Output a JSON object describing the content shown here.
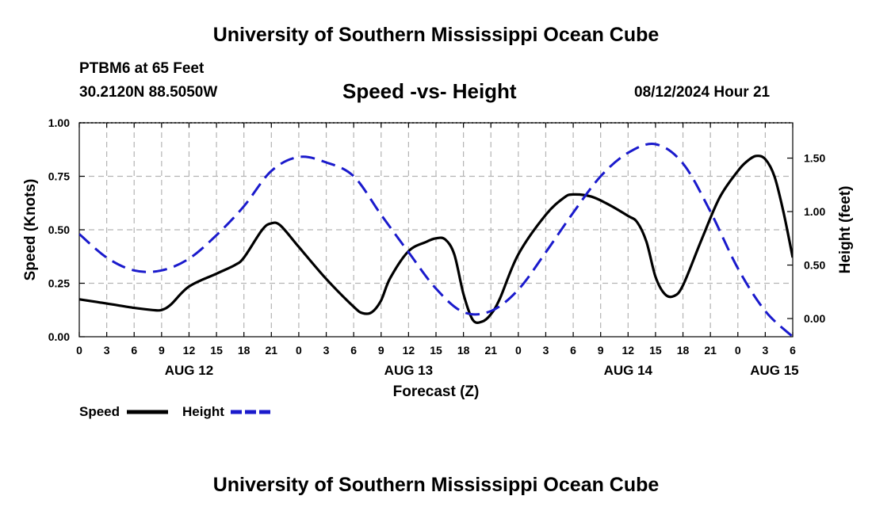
{
  "header": {
    "title_top": "University of Southern Mississippi Ocean Cube",
    "station": "PTBM6 at 65 Feet",
    "coordinates": "30.2120N  88.5050W",
    "subtitle": "Speed -vs- Height",
    "datetime": "08/12/2024 Hour 21"
  },
  "footer": {
    "title_bottom": "University of Southern Mississippi Ocean Cube"
  },
  "chart_data": {
    "type": "line",
    "title": "Speed -vs- Height",
    "xlabel": "Forecast (Z)",
    "ylabel": "Speed (Knots)",
    "ylabel_right": "Height (feet)",
    "x_unit": "hours since AUG 12 00Z",
    "xlim": [
      0,
      78
    ],
    "ylim": [
      0,
      1.0
    ],
    "ylim_right": [
      -0.17,
      1.83
    ],
    "x_ticks": [
      {
        "x": 0,
        "label": "0"
      },
      {
        "x": 3,
        "label": "3"
      },
      {
        "x": 6,
        "label": "6"
      },
      {
        "x": 9,
        "label": "9"
      },
      {
        "x": 12,
        "label": "12"
      },
      {
        "x": 15,
        "label": "15"
      },
      {
        "x": 18,
        "label": "18"
      },
      {
        "x": 21,
        "label": "21"
      },
      {
        "x": 24,
        "label": "0"
      },
      {
        "x": 27,
        "label": "3"
      },
      {
        "x": 30,
        "label": "6"
      },
      {
        "x": 33,
        "label": "9"
      },
      {
        "x": 36,
        "label": "12"
      },
      {
        "x": 39,
        "label": "15"
      },
      {
        "x": 42,
        "label": "18"
      },
      {
        "x": 45,
        "label": "21"
      },
      {
        "x": 48,
        "label": "0"
      },
      {
        "x": 51,
        "label": "3"
      },
      {
        "x": 54,
        "label": "6"
      },
      {
        "x": 57,
        "label": "9"
      },
      {
        "x": 60,
        "label": "12"
      },
      {
        "x": 63,
        "label": "15"
      },
      {
        "x": 66,
        "label": "18"
      },
      {
        "x": 69,
        "label": "21"
      },
      {
        "x": 72,
        "label": "0"
      },
      {
        "x": 75,
        "label": "3"
      },
      {
        "x": 78,
        "label": "6"
      }
    ],
    "date_labels": [
      {
        "x": 12,
        "label": "AUG 12"
      },
      {
        "x": 36,
        "label": "AUG 13"
      },
      {
        "x": 60,
        "label": "AUG 14"
      },
      {
        "x": 76,
        "label": "AUG 15"
      }
    ],
    "y_ticks_left": [
      {
        "v": 0.0,
        "label": "0.00"
      },
      {
        "v": 0.25,
        "label": "0.25"
      },
      {
        "v": 0.5,
        "label": "0.50"
      },
      {
        "v": 0.75,
        "label": "0.75"
      },
      {
        "v": 1.0,
        "label": "1.00"
      }
    ],
    "y_ticks_right": [
      {
        "v": 0.0,
        "label": "0.00"
      },
      {
        "v": 0.5,
        "label": "0.50"
      },
      {
        "v": 1.0,
        "label": "1.00"
      },
      {
        "v": 1.5,
        "label": "1.50"
      }
    ],
    "grid": true,
    "series": [
      {
        "name": "Speed",
        "axis": "left",
        "color": "#000000",
        "dash": "solid",
        "x": [
          0,
          3,
          6,
          8,
          9,
          10,
          12,
          15,
          17,
          18,
          20,
          21,
          22,
          24,
          27,
          30,
          31,
          32,
          33,
          34,
          36,
          38,
          39,
          40,
          41,
          42,
          43,
          44,
          45,
          46,
          48,
          51,
          53,
          54,
          56,
          58,
          60,
          61,
          62,
          63,
          64,
          65,
          66,
          68,
          70,
          72,
          73,
          74,
          75,
          76,
          77,
          78
        ],
        "values": [
          0.175,
          0.155,
          0.135,
          0.125,
          0.125,
          0.15,
          0.235,
          0.295,
          0.335,
          0.37,
          0.5,
          0.53,
          0.52,
          0.42,
          0.27,
          0.14,
          0.11,
          0.115,
          0.17,
          0.275,
          0.4,
          0.445,
          0.46,
          0.455,
          0.385,
          0.2,
          0.08,
          0.07,
          0.105,
          0.18,
          0.385,
          0.57,
          0.65,
          0.665,
          0.655,
          0.615,
          0.565,
          0.535,
          0.445,
          0.28,
          0.2,
          0.19,
          0.24,
          0.45,
          0.65,
          0.775,
          0.82,
          0.845,
          0.83,
          0.75,
          0.58,
          0.37
        ]
      },
      {
        "name": "Height",
        "axis": "right",
        "color": "#1a1acc",
        "dash": "dashed",
        "x": [
          0,
          3,
          6,
          9,
          12,
          15,
          18,
          21,
          24,
          27,
          30,
          33,
          36,
          39,
          42,
          45,
          48,
          51,
          54,
          57,
          60,
          63,
          66,
          69,
          72,
          75,
          78
        ],
        "values": [
          0.79,
          0.57,
          0.45,
          0.45,
          0.56,
          0.78,
          1.05,
          1.38,
          1.51,
          1.46,
          1.33,
          0.97,
          0.62,
          0.28,
          0.06,
          0.07,
          0.27,
          0.62,
          0.99,
          1.33,
          1.55,
          1.63,
          1.45,
          1.0,
          0.47,
          0.07,
          -0.17
        ]
      }
    ],
    "legend": {
      "position": "bottom-left",
      "items": [
        {
          "label": "Speed",
          "color": "#000000",
          "dash": "solid"
        },
        {
          "label": "Height",
          "color": "#1a1acc",
          "dash": "dashed"
        }
      ]
    }
  }
}
